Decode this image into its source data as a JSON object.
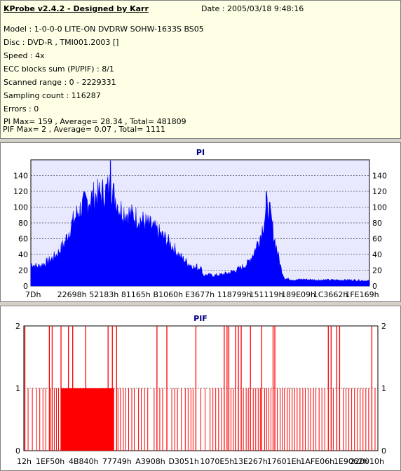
{
  "header": {
    "title": "KProbe v2.4.2 - Designed by Karr",
    "date": "Date : 2005/03/18 9:48:16",
    "lines": [
      "Model : 1-0-0-0 LITE-ON DVDRW SOHW-1633S BS05",
      "Disc : DVD-R , TMI001.2003 []",
      "Speed : 4x",
      "ECC blocks sum (PI/PIF) : 8/1",
      "Scanned range : 0 - 2229331",
      "Sampling count : 116287",
      "Errors : 0",
      "PI Max= 159 , Average= 28.34 , Total= 481809",
      "PIF Max= 2 , Average= 0.07 , Total= 1111"
    ]
  },
  "chart_data": [
    {
      "type": "area",
      "title": "PI",
      "color": "#0000ff",
      "ylim": [
        0,
        160
      ],
      "yticks": [
        0,
        20,
        40,
        60,
        80,
        100,
        120,
        140
      ],
      "xtick_labels": [
        "7Dh",
        "22698h",
        "52183h",
        "81165h",
        "B1060h",
        "E3677h",
        "118799h",
        "151119h",
        "189E09h",
        "1C3662h",
        "1FE169h"
      ],
      "profile": [
        [
          0,
          30
        ],
        [
          2,
          26
        ],
        [
          4,
          30
        ],
        [
          6,
          36
        ],
        [
          8,
          44
        ],
        [
          10,
          58
        ],
        [
          11,
          70
        ],
        [
          12,
          82
        ],
        [
          13,
          90
        ],
        [
          14,
          100
        ],
        [
          16,
          110
        ],
        [
          18,
          118
        ],
        [
          20,
          122
        ],
        [
          22,
          126
        ],
        [
          23,
          130
        ],
        [
          23.5,
          140
        ],
        [
          24,
          126
        ],
        [
          25,
          118
        ],
        [
          26,
          105
        ],
        [
          28,
          98
        ],
        [
          30,
          94
        ],
        [
          32,
          90
        ],
        [
          34,
          84
        ],
        [
          36,
          78
        ],
        [
          38,
          70
        ],
        [
          40,
          62
        ],
        [
          42,
          52
        ],
        [
          44,
          40
        ],
        [
          46,
          32
        ],
        [
          48,
          26
        ],
        [
          49,
          21
        ],
        [
          50,
          27
        ],
        [
          51,
          14
        ],
        [
          52,
          15
        ],
        [
          54,
          14
        ],
        [
          56,
          15
        ],
        [
          58,
          17
        ],
        [
          60,
          20
        ],
        [
          62,
          24
        ],
        [
          64,
          30
        ],
        [
          65,
          38
        ],
        [
          66,
          46
        ],
        [
          67,
          58
        ],
        [
          68,
          70
        ],
        [
          69,
          90
        ],
        [
          70,
          108
        ],
        [
          71,
          88
        ],
        [
          72,
          62
        ],
        [
          73,
          42
        ],
        [
          74,
          22
        ],
        [
          75,
          10
        ],
        [
          78,
          8
        ],
        [
          80,
          9
        ],
        [
          85,
          8
        ],
        [
          90,
          8
        ],
        [
          95,
          8
        ],
        [
          100,
          7
        ]
      ],
      "peaks": [
        {
          "x": 23.5,
          "y": 159
        },
        {
          "x": 69.5,
          "y": 120
        },
        {
          "x": 49,
          "y": 28
        }
      ]
    },
    {
      "type": "bar",
      "title": "PIF",
      "color": "#ff0000",
      "ylim": [
        0,
        2
      ],
      "yticks": [
        0,
        1,
        2
      ],
      "xtick_labels": [
        "12h",
        "1EF50h",
        "4B840h",
        "77749h",
        "A3908h",
        "D3051h",
        "1070E5h",
        "13E267h",
        "17601Eh",
        "1AFE06h",
        "1E9062h",
        "220010h"
      ],
      "dense_block_start": 10.5,
      "dense_block_end": 25.5,
      "value2_x": [
        0.3,
        7.2,
        8.0,
        10.5,
        12.6,
        13.8,
        17.5,
        23.8,
        25.0,
        26.2,
        37.6,
        40.4,
        48.6,
        56.6,
        57.4,
        57.9,
        59.8,
        60.6,
        61.4,
        64.0,
        67.2,
        70.4,
        70.9,
        86.0,
        86.8,
        88.4,
        89.2,
        98.3
      ],
      "value1_x": [
        1.2,
        2.4,
        3.6,
        4.5,
        5.4,
        6.2,
        7.6,
        8.6,
        9.2,
        9.8,
        26.6,
        27.3,
        28.1,
        28.8,
        29.6,
        30.5,
        31.2,
        32.4,
        33.2,
        34.1,
        35.0,
        36.8,
        38.4,
        39.2,
        41.8,
        42.6,
        43.4,
        44.5,
        45.6,
        46.4,
        47.2,
        47.8,
        50.0,
        51.2,
        52.6,
        53.4,
        54.2,
        55.0,
        55.8,
        58.5,
        59.2,
        62.0,
        62.8,
        63.4,
        64.8,
        65.5,
        66.2,
        66.8,
        68.0,
        68.6,
        69.2,
        69.8,
        71.6,
        72.4,
        73.0,
        73.6,
        74.4,
        75.0,
        75.8,
        76.5,
        77.2,
        78.0,
        78.8,
        79.5,
        80.3,
        81.0,
        81.8,
        82.5,
        83.4,
        84.2,
        85.0,
        87.4,
        90.2,
        91.0,
        91.8,
        92.6,
        93.4,
        94.2,
        95.0,
        95.8,
        96.6,
        97.4,
        99.2
      ]
    }
  ]
}
